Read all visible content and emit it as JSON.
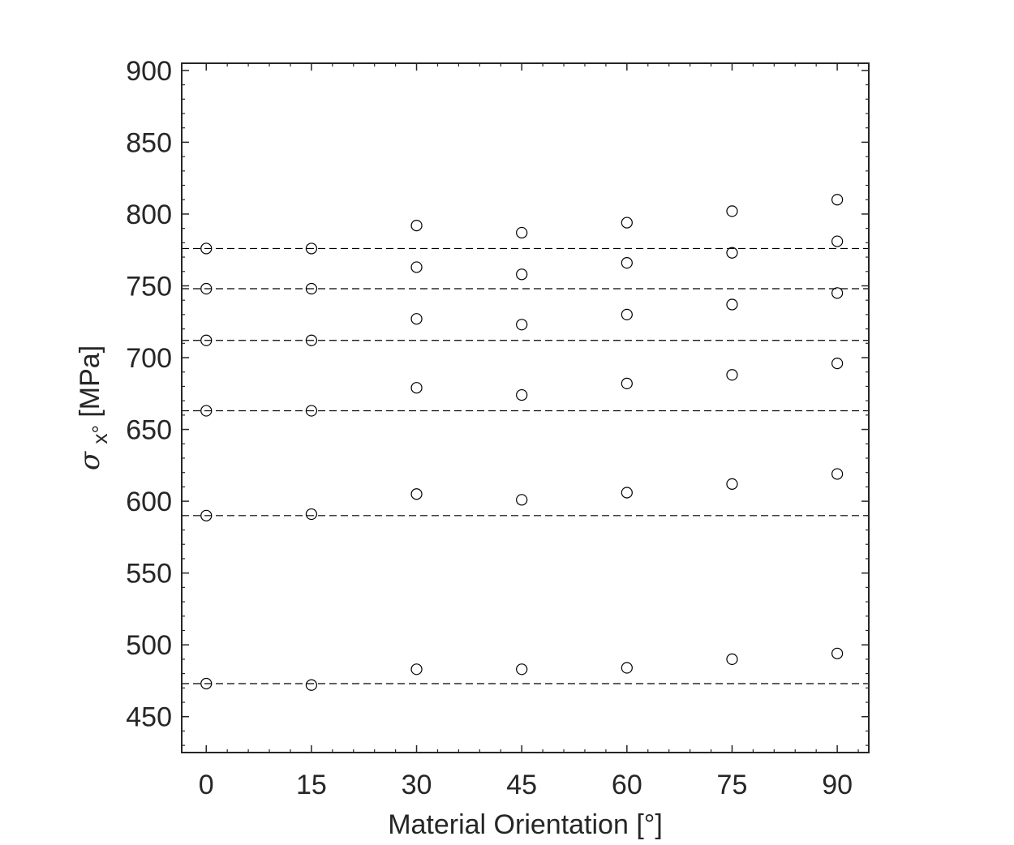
{
  "chart_data": {
    "type": "scatter",
    "title": "",
    "xlabel": "Material Orientation [°]",
    "ylabel": {
      "symbol": "σ",
      "subscript": "x°",
      "unit": "[MPa]"
    },
    "xlim": [
      -3.5,
      94.5
    ],
    "ylim": [
      425,
      905
    ],
    "xticks": [
      0,
      15,
      30,
      45,
      60,
      75,
      90
    ],
    "yticks": [
      450,
      500,
      550,
      600,
      650,
      700,
      750,
      800,
      850,
      900
    ],
    "grid": false,
    "legend": "none",
    "marker": "open-circle",
    "x": [
      0,
      15,
      30,
      45,
      60,
      75,
      90
    ],
    "series": [
      {
        "values": [
          473,
          472,
          483,
          483,
          484,
          490,
          494
        ]
      },
      {
        "values": [
          590,
          591,
          605,
          601,
          606,
          612,
          619
        ]
      },
      {
        "values": [
          663,
          663,
          679,
          674,
          682,
          688,
          696
        ]
      },
      {
        "values": [
          712,
          712,
          727,
          723,
          730,
          737,
          745
        ]
      },
      {
        "values": [
          748,
          748,
          763,
          758,
          766,
          773,
          781
        ]
      },
      {
        "values": [
          776,
          776,
          792,
          787,
          794,
          802,
          810
        ]
      }
    ],
    "reference_lines": [
      473,
      590,
      663,
      712,
      748,
      776
    ],
    "colors": {
      "axis": "#262626",
      "marker": "#000000",
      "reference_line": "#000000"
    }
  }
}
